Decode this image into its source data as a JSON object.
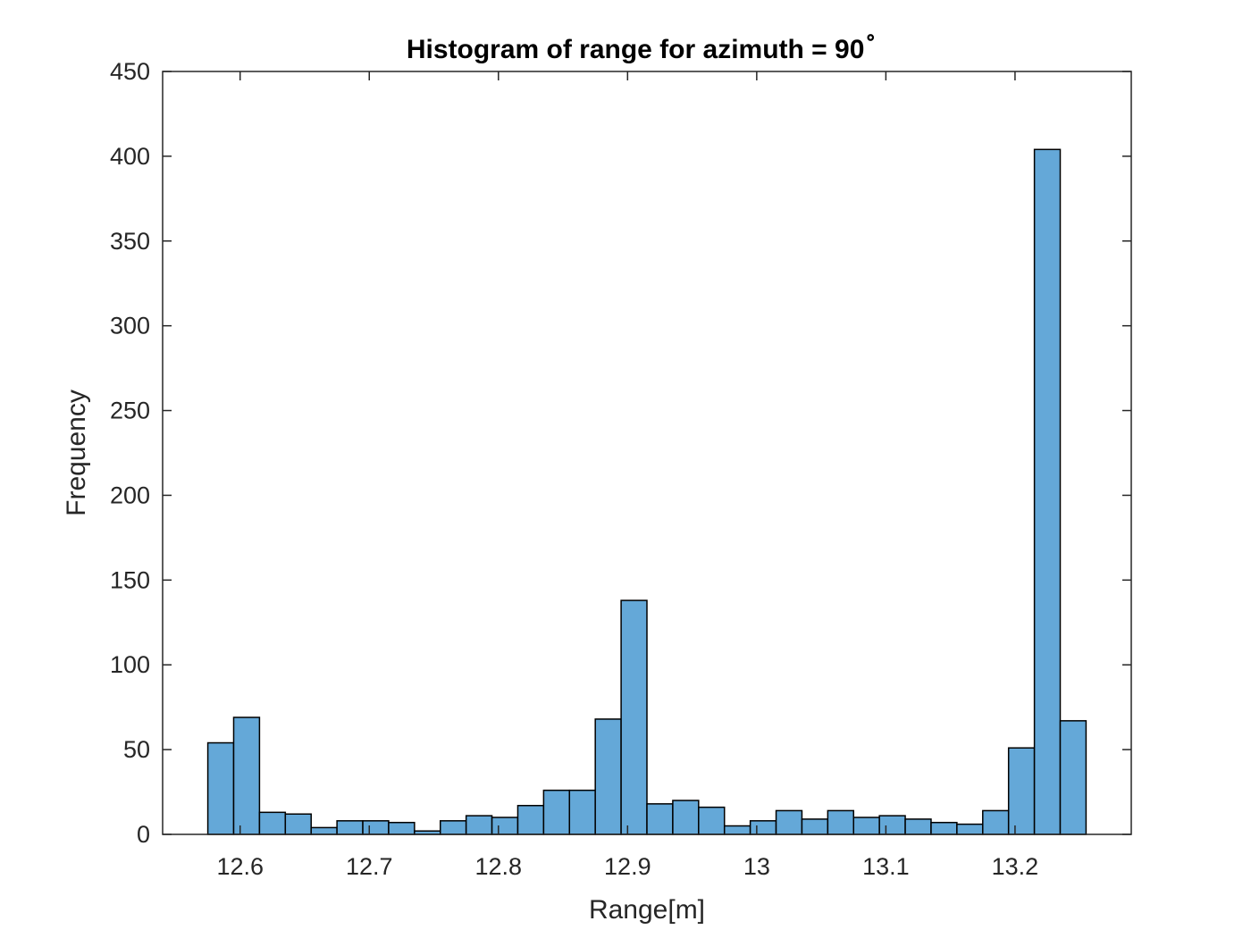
{
  "chart_data": {
    "type": "bar",
    "title": "Histogram of range for azimuth = 90",
    "title_superscript": "∘",
    "xlabel": "Range[m]",
    "ylabel": "Frequency",
    "xlim": [
      12.54,
      13.29
    ],
    "ylim": [
      0,
      450
    ],
    "xticks": [
      12.6,
      12.7,
      12.8,
      12.9,
      13,
      13.1,
      13.2
    ],
    "xtick_labels": [
      "12.6",
      "12.7",
      "12.8",
      "12.9",
      "13",
      "13.1",
      "13.2"
    ],
    "yticks": [
      0,
      50,
      100,
      150,
      200,
      250,
      300,
      350,
      400,
      450
    ],
    "ytick_labels": [
      "0",
      "50",
      "100",
      "150",
      "200",
      "250",
      "300",
      "350",
      "400",
      "450"
    ],
    "grid": false,
    "bin_start": 12.575,
    "bin_width": 0.02,
    "values": [
      54,
      69,
      13,
      12,
      4,
      8,
      8,
      7,
      2,
      8,
      11,
      10,
      17,
      26,
      26,
      68,
      138,
      18,
      20,
      16,
      5,
      8,
      14,
      9,
      14,
      10,
      11,
      9,
      7,
      6,
      14,
      51,
      404,
      67
    ],
    "bar_color": "#64a8d8",
    "edge_color": "#000000"
  }
}
